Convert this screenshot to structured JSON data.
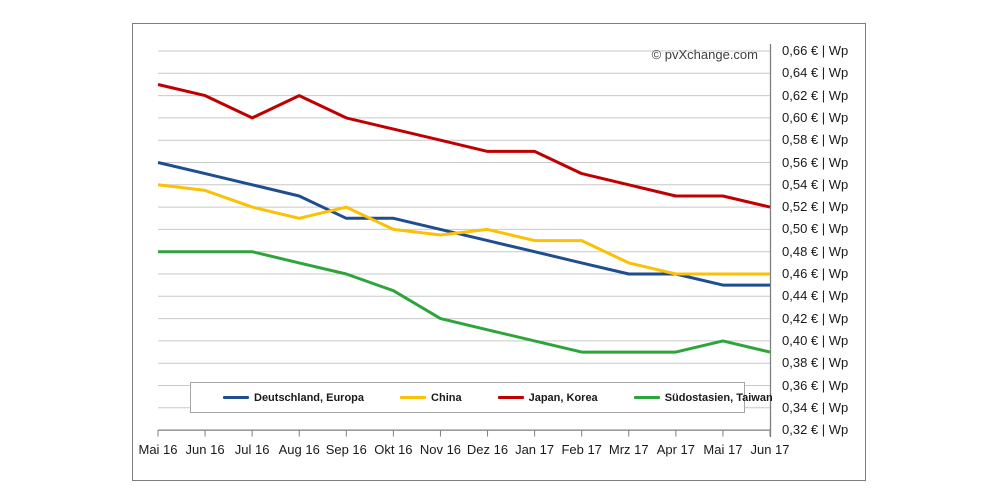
{
  "chart_data": {
    "type": "line",
    "copyright": "© pvXchange.com",
    "y_unit": "€ | Wp",
    "y_max": 0.66,
    "y_min": 0.32,
    "y_step": 0.02,
    "grid": true,
    "legend_position": "bottom",
    "y_tick_labels": [
      "0,66 € | Wp",
      "0,64 € | Wp",
      "0,62 € | Wp",
      "0,60 € | Wp",
      "0,58 € | Wp",
      "0,56 € | Wp",
      "0,54 € | Wp",
      "0,52 € | Wp",
      "0,50 € | Wp",
      "0,48 € | Wp",
      "0,46 € | Wp",
      "0,44 € | Wp",
      "0,42 € | Wp",
      "0,40 € | Wp",
      "0,38 € | Wp",
      "0,36 € | Wp",
      "0,34 € | Wp",
      "0,32 € | Wp"
    ],
    "x_labels": [
      "Mai 16",
      "Jun 16",
      "Jul 16",
      "Aug 16",
      "Sep 16",
      "Okt 16",
      "Nov 16",
      "Dez 16",
      "Jan 17",
      "Feb 17",
      "Mrz 17",
      "Apr 17",
      "Mai 17",
      "Jun 17"
    ],
    "series": [
      {
        "name": "Deutschland, Europa",
        "color": "#1f4e8f",
        "values": [
          0.56,
          0.55,
          0.54,
          0.53,
          0.51,
          0.51,
          0.5,
          0.49,
          0.48,
          0.47,
          0.46,
          0.46,
          0.45,
          0.45
        ]
      },
      {
        "name": "China",
        "color": "#fcc005",
        "values": [
          0.54,
          0.535,
          0.52,
          0.51,
          0.52,
          0.5,
          0.495,
          0.5,
          0.49,
          0.49,
          0.47,
          0.46,
          0.46,
          0.46
        ]
      },
      {
        "name": "Japan, Korea",
        "color": "#c00000",
        "values": [
          0.63,
          0.62,
          0.6,
          0.62,
          0.6,
          0.59,
          0.58,
          0.57,
          0.57,
          0.55,
          0.54,
          0.53,
          0.53,
          0.52
        ]
      },
      {
        "name": "Südostasien, Taiwan",
        "color": "#2ea53a",
        "values": [
          0.48,
          0.48,
          0.48,
          0.47,
          0.46,
          0.445,
          0.42,
          0.41,
          0.4,
          0.39,
          0.39,
          0.39,
          0.4,
          0.39
        ]
      }
    ],
    "colors": {
      "gridline": "#c9c9c9",
      "axis": "#7f7f7f",
      "frame": "#7d7d7d"
    }
  }
}
